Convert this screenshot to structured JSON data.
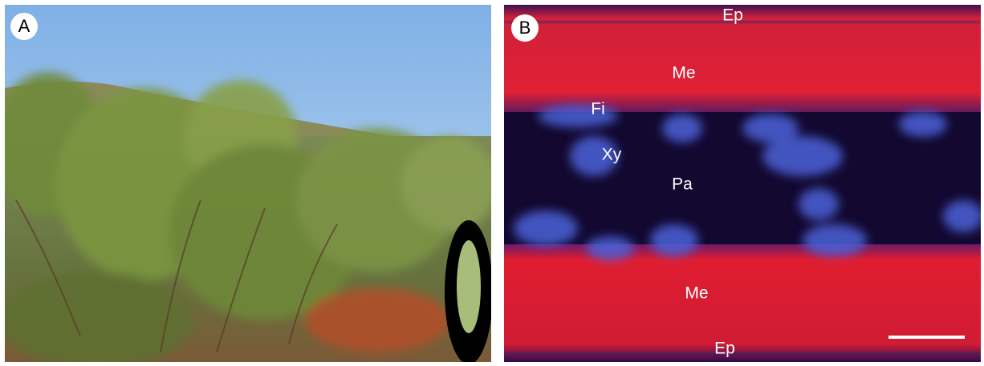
{
  "panels": [
    {
      "label": "A"
    },
    {
      "label": "B",
      "annotations": [
        "Ep",
        "Me",
        "Fi",
        "Xy",
        "Pa",
        "Me",
        "Ep"
      ]
    }
  ]
}
